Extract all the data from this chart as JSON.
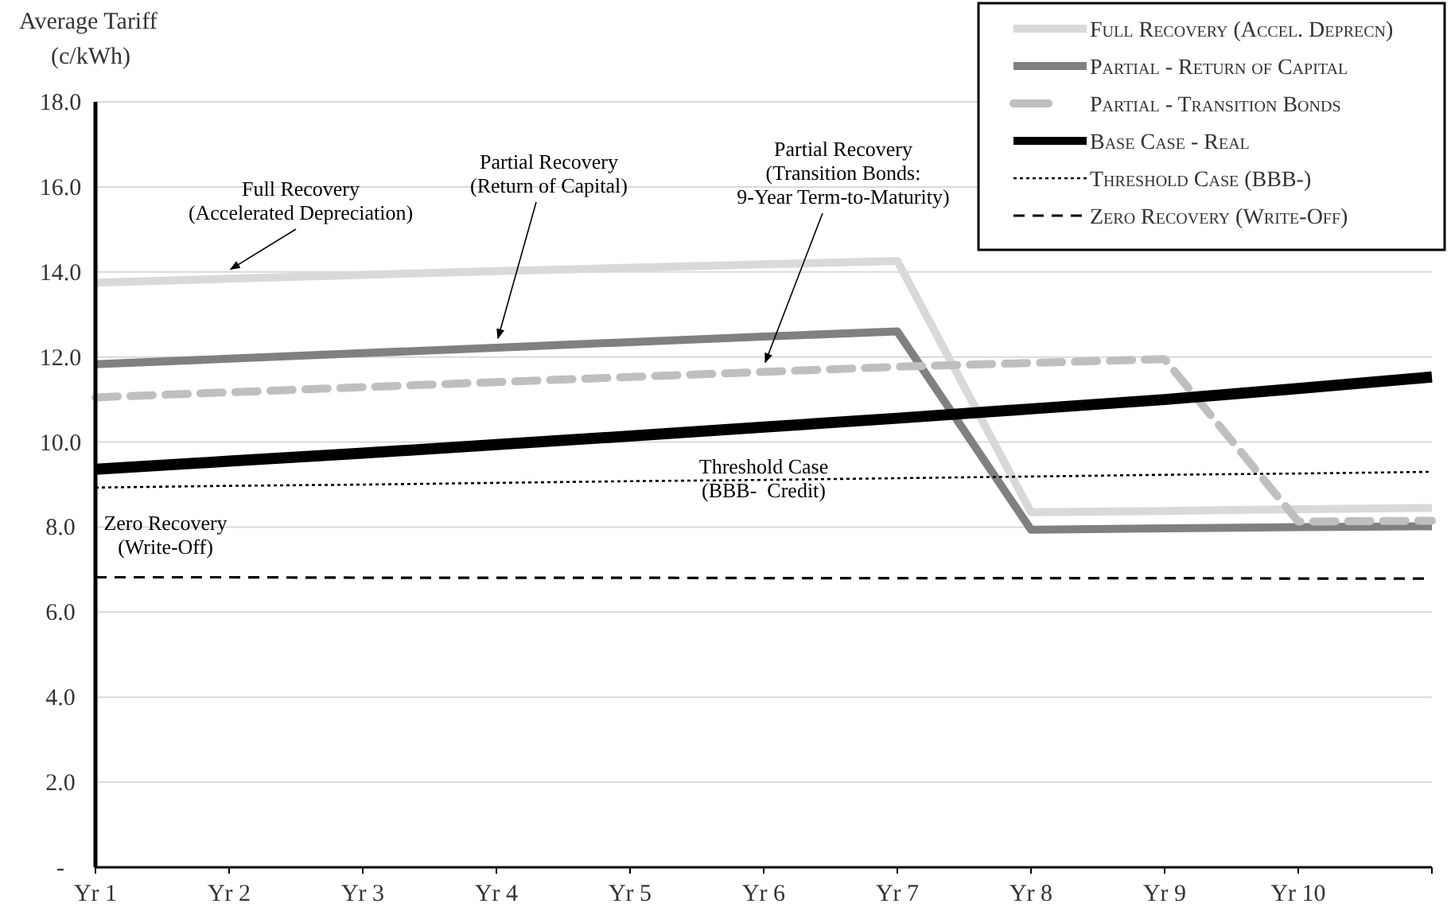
{
  "chart_data": {
    "type": "line",
    "ylabel": "Average Tariff\n(c/kWh)",
    "categories": [
      "Yr 1",
      "Yr 2",
      "Yr 3",
      "Yr 4",
      "Yr 5",
      "Yr 6",
      "Yr 7",
      "Yr 8",
      "Yr 9",
      "Yr 10",
      null
    ],
    "series": [
      {
        "name": "Full Recovery (Accel. Deprecn)",
        "color": "#d9d9d9",
        "line_style": "solid",
        "values": [
          13.75,
          13.84,
          13.93,
          14.02,
          14.1,
          14.18,
          14.26,
          8.35,
          8.38,
          8.42,
          8.45
        ]
      },
      {
        "name": "Partial - Return of Capital",
        "color": "#808080",
        "line_style": "solid",
        "values": [
          11.83,
          11.96,
          12.09,
          12.22,
          12.35,
          12.48,
          12.6,
          7.94,
          7.97,
          8.0,
          8.02
        ]
      },
      {
        "name": "Partial - Transition Bonds",
        "color": "#bfbfbf",
        "line_style": "dashed",
        "values": [
          11.05,
          11.17,
          11.29,
          11.41,
          11.53,
          11.65,
          11.77,
          11.86,
          11.95,
          8.13,
          8.15
        ]
      },
      {
        "name": "Base Case - Real",
        "color": "#000000",
        "line_style": "solid",
        "values": [
          9.36,
          9.55,
          9.74,
          9.94,
          10.14,
          10.35,
          10.56,
          10.78,
          11.0,
          11.26,
          11.53
        ]
      },
      {
        "name": "Threshold Case (BBB-)",
        "color": "#000000",
        "line_style": "dotted",
        "values": [
          8.93,
          8.97,
          9.0,
          9.04,
          9.08,
          9.11,
          9.15,
          9.19,
          9.23,
          9.26,
          9.3
        ]
      },
      {
        "name": "Zero Recovery (Write-Off)",
        "color": "#000000",
        "line_style": "dashed",
        "values": [
          6.82,
          6.82,
          6.81,
          6.81,
          6.81,
          6.8,
          6.8,
          6.8,
          6.8,
          6.79,
          6.79
        ]
      }
    ],
    "ylim": [
      0,
      18
    ],
    "yticks": [
      {
        "value": 0,
        "label": "-"
      },
      {
        "value": 2,
        "label": "2.0"
      },
      {
        "value": 4,
        "label": "4.0"
      },
      {
        "value": 6,
        "label": "6.0"
      },
      {
        "value": 8,
        "label": "8.0"
      },
      {
        "value": 10,
        "label": "10.0"
      },
      {
        "value": 12,
        "label": "12.0"
      },
      {
        "value": 14,
        "label": "14.0"
      },
      {
        "value": 16,
        "label": "16.0"
      },
      {
        "value": 18,
        "label": "18.0"
      }
    ],
    "grid": "y",
    "legend": "top right",
    "marker": "none",
    "annotations": [
      {
        "text": "Full Recovery\n(Accelerated Depreciation)",
        "x": "Yr 2",
        "y": 13.84
      },
      {
        "text": "Partial Recovery\n(Return of Capital)",
        "x": "Yr 4",
        "y": 12.22
      },
      {
        "text": "Partial Recovery\n(Transition Bonds:\n9-Year Term-to-Maturity)",
        "x": "Yr 6",
        "y": 11.65
      },
      {
        "text": "Threshold Case\n(BBB-  Credit)",
        "x": "Yr 6",
        "y": 9.11
      },
      {
        "text": "Zero Recovery\n(Write-Off)",
        "x": "Yr 2",
        "y": 6.82
      }
    ]
  }
}
